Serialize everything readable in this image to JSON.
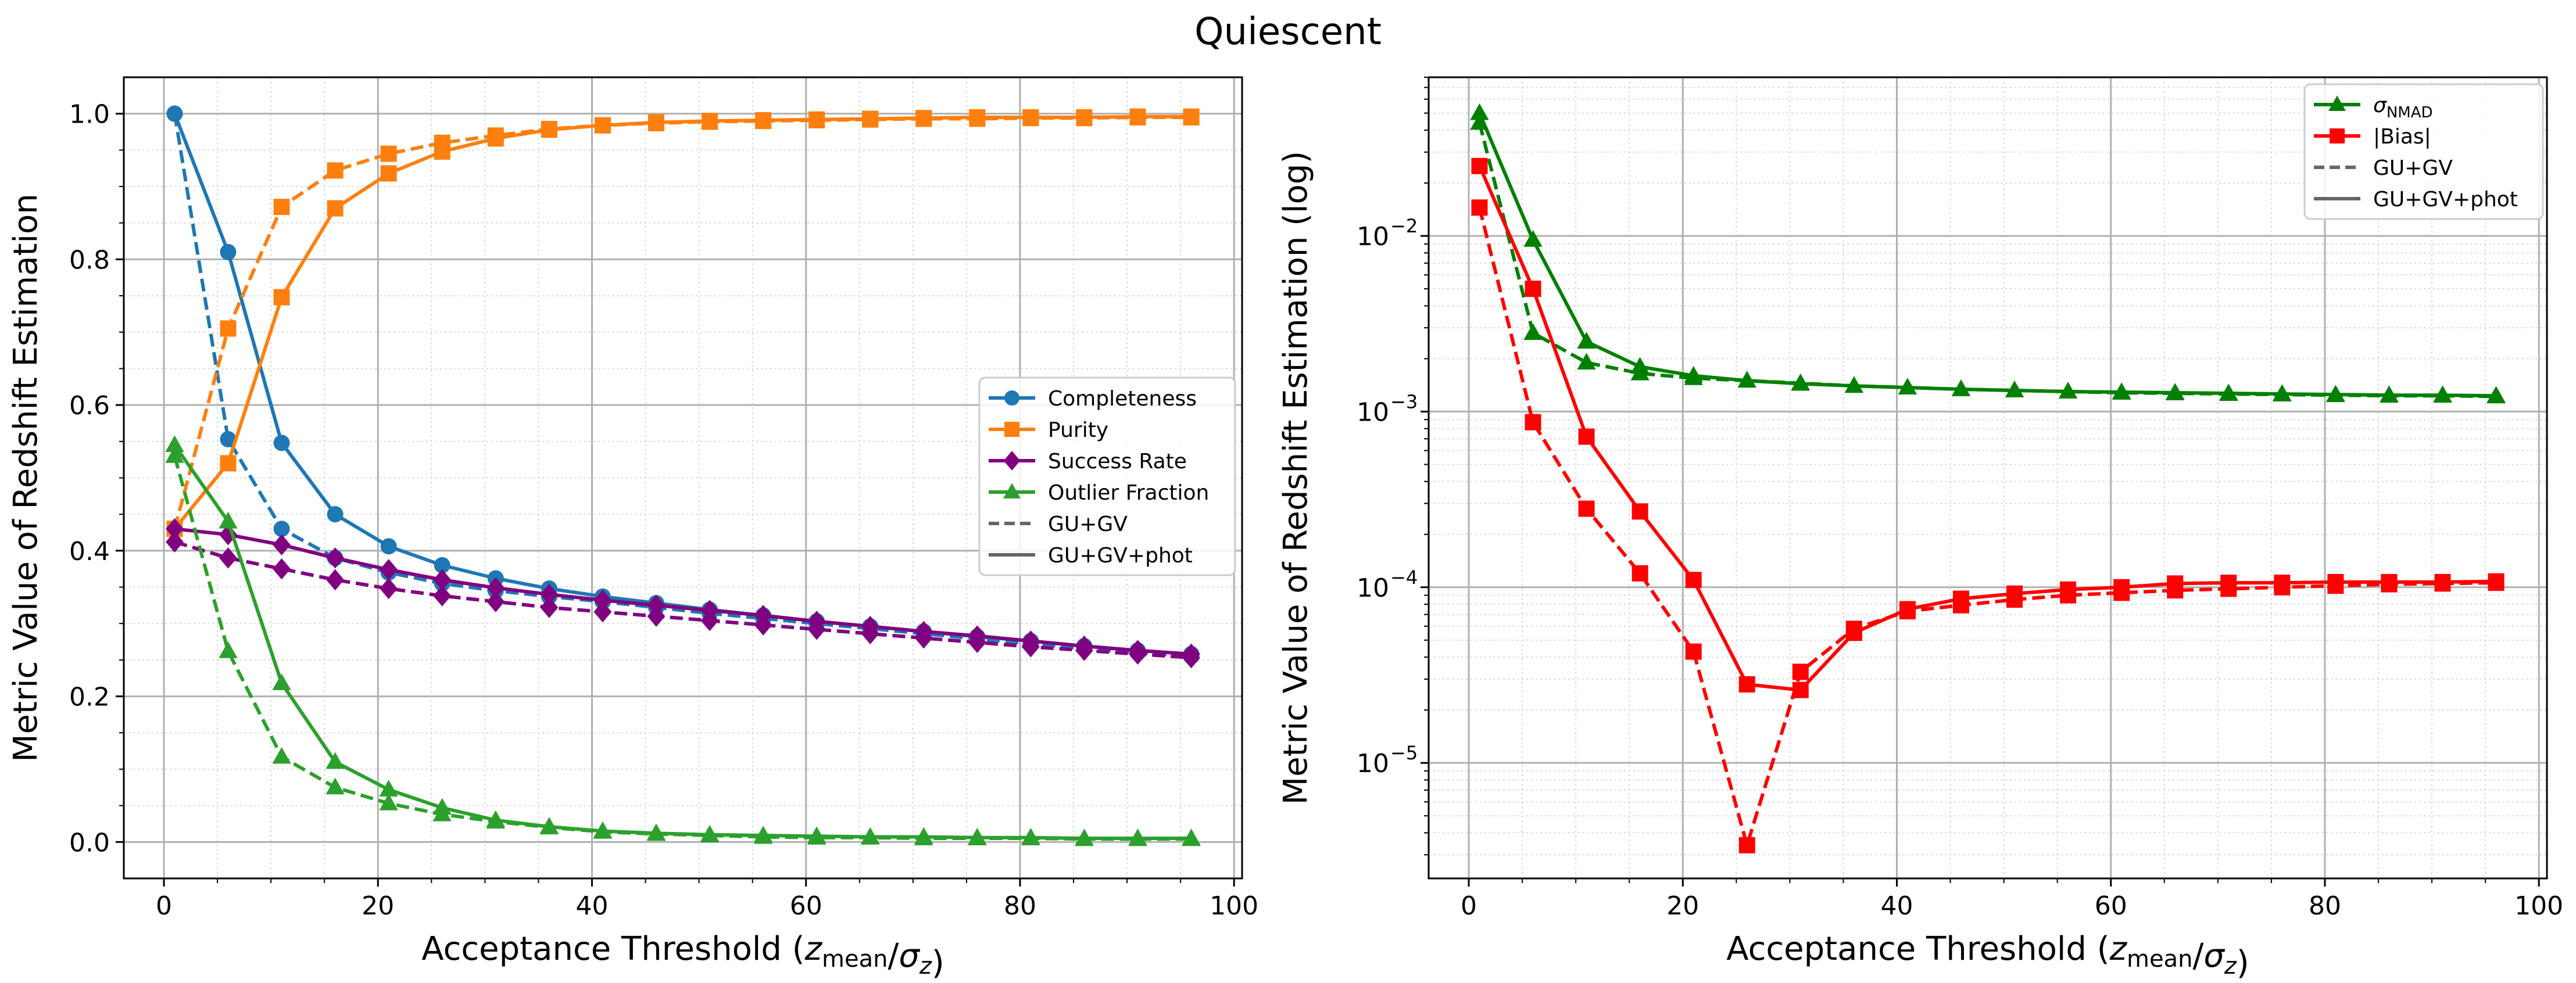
{
  "figure": {
    "title": "Quiescent"
  },
  "legend_styles": {
    "gu_gv": "GU+GV",
    "gu_gv_phot": "GU+GV+phot"
  },
  "colors": {
    "completeness": "#1f77b4",
    "purity": "#ff7f0e",
    "success": "#800080",
    "outlier": "#2ca02c",
    "sigma": "#008000",
    "bias": "#ff0000",
    "style": "#666666"
  },
  "chart_data": [
    {
      "type": "line",
      "title": "",
      "xlabel": "Acceptance Threshold (z_mean/σ_z)",
      "ylabel": "Metric Value of Redshift Estimation",
      "xlim": [
        -3.75,
        100.75
      ],
      "ylim": [
        -0.05,
        1.05
      ],
      "xticks": [
        "0",
        "20",
        "40",
        "60",
        "80",
        "100"
      ],
      "yticks": [
        "0.0",
        "0.2",
        "0.4",
        "0.6",
        "0.8",
        "1.0"
      ],
      "grid": true,
      "legend_position": "center-right",
      "x": [
        1,
        6,
        11,
        16,
        21,
        26,
        31,
        36,
        41,
        46,
        51,
        56,
        61,
        66,
        71,
        76,
        81,
        86,
        91,
        96
      ],
      "series": [
        {
          "name": "Completeness",
          "variant": "GU+GV+phot",
          "color": "#1f77b4",
          "marker": "circle",
          "values": [
            1.0,
            0.81,
            0.548,
            0.45,
            0.406,
            0.38,
            0.362,
            0.348,
            0.337,
            0.328,
            0.319,
            0.311,
            0.303,
            0.296,
            0.289,
            0.282,
            0.276,
            0.269,
            0.263,
            0.258
          ]
        },
        {
          "name": "Completeness",
          "variant": "GU+GV",
          "color": "#1f77b4",
          "marker": "circle",
          "values": [
            1.0,
            0.553,
            0.43,
            0.39,
            0.37,
            0.355,
            0.345,
            0.337,
            0.33,
            0.322,
            0.314,
            0.307,
            0.3,
            0.293,
            0.286,
            0.279,
            0.272,
            0.266,
            0.26,
            0.255
          ]
        },
        {
          "name": "Purity",
          "variant": "GU+GV+phot",
          "color": "#ff7f0e",
          "marker": "square",
          "values": [
            0.43,
            0.52,
            0.748,
            0.87,
            0.918,
            0.948,
            0.966,
            0.978,
            0.984,
            0.988,
            0.99,
            0.991,
            0.992,
            0.993,
            0.994,
            0.995,
            0.995,
            0.995,
            0.996,
            0.996
          ]
        },
        {
          "name": "Purity",
          "variant": "GU+GV",
          "color": "#ff7f0e",
          "marker": "square",
          "values": [
            0.43,
            0.705,
            0.872,
            0.922,
            0.945,
            0.96,
            0.97,
            0.979,
            0.984,
            0.987,
            0.989,
            0.99,
            0.991,
            0.992,
            0.993,
            0.993,
            0.994,
            0.994,
            0.995,
            0.995
          ]
        },
        {
          "name": "Success Rate",
          "variant": "GU+GV+phot",
          "color": "#800080",
          "marker": "diamond",
          "values": [
            0.43,
            0.422,
            0.408,
            0.39,
            0.374,
            0.36,
            0.349,
            0.34,
            0.332,
            0.325,
            0.318,
            0.311,
            0.303,
            0.296,
            0.289,
            0.283,
            0.276,
            0.269,
            0.263,
            0.258
          ]
        },
        {
          "name": "Success Rate",
          "variant": "GU+GV",
          "color": "#800080",
          "marker": "diamond",
          "values": [
            0.412,
            0.39,
            0.375,
            0.36,
            0.348,
            0.338,
            0.33,
            0.322,
            0.316,
            0.31,
            0.304,
            0.298,
            0.292,
            0.286,
            0.28,
            0.274,
            0.268,
            0.263,
            0.258,
            0.253
          ]
        },
        {
          "name": "Outlier Fraction",
          "variant": "GU+GV+phot",
          "color": "#2ca02c",
          "marker": "triangle",
          "values": [
            0.545,
            0.44,
            0.218,
            0.11,
            0.072,
            0.047,
            0.03,
            0.021,
            0.015,
            0.012,
            0.01,
            0.009,
            0.008,
            0.007,
            0.007,
            0.006,
            0.006,
            0.005,
            0.005,
            0.005
          ]
        },
        {
          "name": "Outlier Fraction",
          "variant": "GU+GV",
          "color": "#2ca02c",
          "marker": "triangle",
          "values": [
            0.53,
            0.262,
            0.117,
            0.075,
            0.053,
            0.038,
            0.028,
            0.02,
            0.014,
            0.011,
            0.009,
            0.007,
            0.006,
            0.006,
            0.005,
            0.005,
            0.005,
            0.004,
            0.004,
            0.004
          ]
        }
      ],
      "legend": [
        {
          "label": "Completeness",
          "color": "#1f77b4",
          "marker": "circle",
          "style": "solid"
        },
        {
          "label": "Purity",
          "color": "#ff7f0e",
          "marker": "square",
          "style": "solid"
        },
        {
          "label": "Success Rate",
          "color": "#800080",
          "marker": "diamond",
          "style": "solid"
        },
        {
          "label": "Outlier Fraction",
          "color": "#2ca02c",
          "marker": "triangle",
          "style": "solid"
        },
        {
          "label": "GU+GV",
          "color": "#666666",
          "marker": "none",
          "style": "dashed"
        },
        {
          "label": "GU+GV+phot",
          "color": "#666666",
          "marker": "none",
          "style": "solid"
        }
      ]
    },
    {
      "type": "line",
      "title": "",
      "xlabel": "Acceptance Threshold (z_mean/σ_z)",
      "ylabel": "Metric Value of Redshift Estimation (log)",
      "yscale": "log",
      "xlim": [
        -3.75,
        100.75
      ],
      "ylim": [
        2.2e-06,
        0.08
      ],
      "xticks": [
        "0",
        "20",
        "40",
        "60",
        "80",
        "100"
      ],
      "yticks": [
        "10",
        "10",
        "10",
        "10"
      ],
      "ytick_exponents": [
        "−5",
        "−4",
        "−3",
        "−2"
      ],
      "grid": true,
      "legend_position": "top-right",
      "x": [
        1,
        6,
        11,
        16,
        21,
        26,
        31,
        36,
        41,
        46,
        51,
        56,
        61,
        66,
        71,
        76,
        81,
        86,
        91,
        96
      ],
      "series": [
        {
          "name": "σ_NMAD",
          "variant": "GU+GV+phot",
          "color": "#008000",
          "marker": "triangle",
          "values": [
            0.05,
            0.0095,
            0.0025,
            0.0018,
            0.0016,
            0.0015,
            0.00144,
            0.0014,
            0.00137,
            0.00134,
            0.00132,
            0.0013,
            0.00129,
            0.00128,
            0.00127,
            0.00126,
            0.00125,
            0.00124,
            0.00124,
            0.00123
          ]
        },
        {
          "name": "σ_NMAD",
          "variant": "GU+GV",
          "color": "#008000",
          "marker": "triangle",
          "values": [
            0.044,
            0.0028,
            0.0019,
            0.00165,
            0.00155,
            0.0015,
            0.00145,
            0.0014,
            0.00137,
            0.00134,
            0.00132,
            0.0013,
            0.00128,
            0.00127,
            0.00126,
            0.00125,
            0.00124,
            0.00123,
            0.00123,
            0.00122
          ]
        },
        {
          "name": "|Bias|",
          "variant": "GU+GV+phot",
          "color": "#ff0000",
          "marker": "square",
          "values": [
            0.025,
            0.005,
            0.00072,
            0.00027,
            0.00011,
            2.8e-05,
            2.6e-05,
            5.5e-05,
            7.5e-05,
            8.6e-05,
            9.2e-05,
            9.7e-05,
            0.0001,
            0.000105,
            0.000106,
            0.000106,
            0.000107,
            0.000107,
            0.000107,
            0.000108
          ]
        },
        {
          "name": "|Bias|",
          "variant": "GU+GV",
          "color": "#ff0000",
          "marker": "square",
          "values": [
            0.0145,
            0.00087,
            0.00028,
            0.00012,
            4.3e-05,
            3.4e-06,
            3.3e-05,
            5.8e-05,
            7.3e-05,
            7.9e-05,
            8.5e-05,
            9e-05,
            9.3e-05,
            9.6e-05,
            9.8e-05,
            0.0001,
            0.000102,
            0.000104,
            0.000105,
            0.000106
          ]
        }
      ],
      "legend": [
        {
          "label": "σ",
          "subscript": "NMAD",
          "color": "#008000",
          "marker": "triangle",
          "style": "solid"
        },
        {
          "label": "|Bias|",
          "color": "#ff0000",
          "marker": "square",
          "style": "solid"
        },
        {
          "label": "GU+GV",
          "color": "#666666",
          "marker": "none",
          "style": "dashed"
        },
        {
          "label": "GU+GV+phot",
          "color": "#666666",
          "marker": "none",
          "style": "solid"
        }
      ]
    }
  ]
}
